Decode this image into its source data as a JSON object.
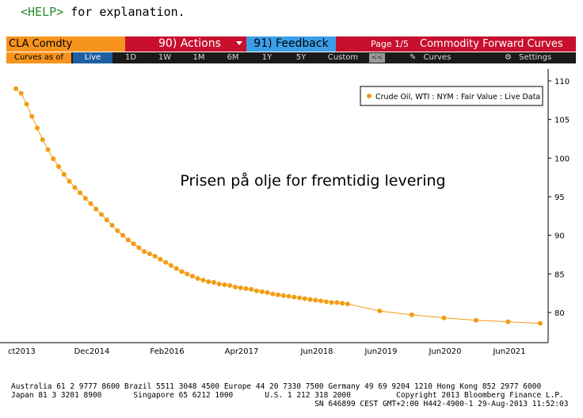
{
  "help": {
    "key": "<HELP>",
    "text": " for explanation."
  },
  "toolbar": {
    "ticker": "CLA Comdty",
    "actions_label": "90) Actions",
    "feedback_label": "91) Feedback",
    "page": "Page 1/5",
    "title": "Commodity Forward Curves",
    "curves_as_of": "Curves as of",
    "ranges": [
      "Live",
      "1D",
      "1W",
      "1M",
      "6M",
      "1Y",
      "5Y",
      "Custom"
    ],
    "active_range": "Live",
    "collapse_label": "<<",
    "curves_label": "Curves",
    "settings_label": "Settings"
  },
  "chart_data": {
    "type": "scatter",
    "title": "",
    "annotation": "Prisen på olje for fremtidig levering",
    "legend": {
      "label": "Crude Oil, WTI : NYM : Fair Value : Live Data",
      "placement": "top-right"
    },
    "series": [
      {
        "name": "Crude Oil, WTI : NYM : Fair Value : Live Data",
        "color": "#f39c12",
        "points": [
          [
            "2013-10",
            109.0
          ],
          [
            "2013-11",
            108.4
          ],
          [
            "2013-12",
            107.0
          ],
          [
            "2014-01",
            105.4
          ],
          [
            "2014-02",
            103.9
          ],
          [
            "2014-03",
            102.4
          ],
          [
            "2014-04",
            101.1
          ],
          [
            "2014-05",
            99.9
          ],
          [
            "2014-06",
            98.9
          ],
          [
            "2014-07",
            97.9
          ],
          [
            "2014-08",
            97.0
          ],
          [
            "2014-09",
            96.2
          ],
          [
            "2014-10",
            95.5
          ],
          [
            "2014-11",
            94.8
          ],
          [
            "2014-12",
            94.1
          ],
          [
            "2015-01",
            93.4
          ],
          [
            "2015-02",
            92.7
          ],
          [
            "2015-03",
            92.0
          ],
          [
            "2015-04",
            91.3
          ],
          [
            "2015-05",
            90.6
          ],
          [
            "2015-06",
            90.0
          ],
          [
            "2015-07",
            89.4
          ],
          [
            "2015-08",
            88.9
          ],
          [
            "2015-09",
            88.4
          ],
          [
            "2015-10",
            87.9
          ],
          [
            "2015-11",
            87.6
          ],
          [
            "2015-12",
            87.3
          ],
          [
            "2016-01",
            86.9
          ],
          [
            "2016-02",
            86.5
          ],
          [
            "2016-03",
            86.1
          ],
          [
            "2016-04",
            85.7
          ],
          [
            "2016-05",
            85.3
          ],
          [
            "2016-06",
            85.0
          ],
          [
            "2016-07",
            84.7
          ],
          [
            "2016-08",
            84.4
          ],
          [
            "2016-09",
            84.2
          ],
          [
            "2016-10",
            84.0
          ],
          [
            "2016-11",
            83.9
          ],
          [
            "2016-12",
            83.7
          ],
          [
            "2017-01",
            83.6
          ],
          [
            "2017-02",
            83.5
          ],
          [
            "2017-03",
            83.3
          ],
          [
            "2017-04",
            83.2
          ],
          [
            "2017-05",
            83.1
          ],
          [
            "2017-06",
            83.0
          ],
          [
            "2017-07",
            82.8
          ],
          [
            "2017-08",
            82.7
          ],
          [
            "2017-09",
            82.6
          ],
          [
            "2017-10",
            82.4
          ],
          [
            "2017-11",
            82.3
          ],
          [
            "2017-12",
            82.2
          ],
          [
            "2018-01",
            82.1
          ],
          [
            "2018-02",
            82.0
          ],
          [
            "2018-03",
            81.9
          ],
          [
            "2018-04",
            81.8
          ],
          [
            "2018-05",
            81.7
          ],
          [
            "2018-06",
            81.6
          ],
          [
            "2018-07",
            81.5
          ],
          [
            "2018-08",
            81.4
          ],
          [
            "2018-09",
            81.3
          ],
          [
            "2018-10",
            81.3
          ],
          [
            "2018-11",
            81.2
          ],
          [
            "2018-12",
            81.1
          ],
          [
            "2019-06",
            80.2
          ],
          [
            "2019-12",
            79.7
          ],
          [
            "2020-06",
            79.3
          ],
          [
            "2020-12",
            79.0
          ],
          [
            "2021-06",
            78.8
          ],
          [
            "2021-12",
            78.6
          ]
        ]
      }
    ],
    "x_ticks": [
      "ct2013",
      "Dec2014",
      "Feb2016",
      "Apr2017",
      "Jun2018",
      "Jun2019",
      "Jun2020",
      "Jun2021"
    ],
    "y_ticks": [
      80,
      85,
      90,
      95,
      100,
      105,
      110
    ],
    "ylim": [
      75,
      111
    ],
    "y_axis_side": "right",
    "grid": false
  },
  "footer": {
    "line1": "Australia 61 2 9777 8600 Brazil 5511 3048 4500 Europe 44 20 7330 7500 Germany 49 69 9204 1210 Hong Kong 852 2977 6000",
    "line2": "Japan 81 3 3201 8900       Singapore 65 6212 1000       U.S. 1 212 318 2000          Copyright 2013 Bloomberg Finance L.P.",
    "line3": "                                                                   SN 646899 CEST GMT+2:00 H442-4900-1 29-Aug-2013 11:52:03"
  }
}
